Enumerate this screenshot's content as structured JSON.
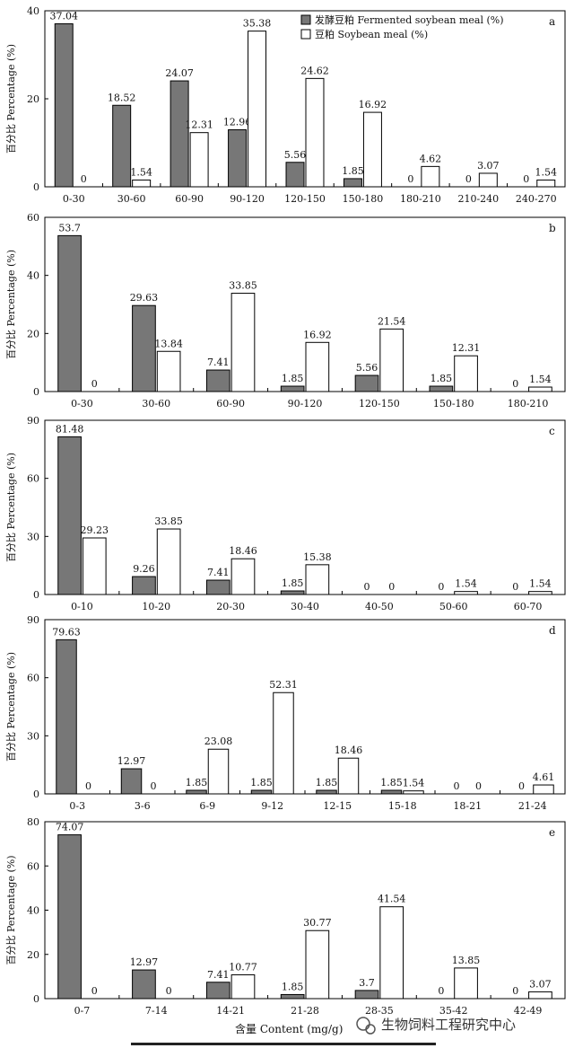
{
  "legend": [
    {
      "label": "发酵豆粕 Fermented soybean meal (%)",
      "color": "#777777"
    },
    {
      "label": "豆粕 Soybean meal (%)",
      "color": "#ffffff"
    }
  ],
  "xlabel": "含量 Content (mg/g)",
  "watermark": "生物饲料工程研究中心",
  "chart_data": [
    {
      "type": "bar",
      "panel": "a",
      "ylabel": "百分比 Percentage (%)",
      "ylim": [
        0,
        40
      ],
      "yticks": [
        0,
        20,
        40
      ],
      "categories": [
        "0-30",
        "30-60",
        "60-90",
        "90-120",
        "120-150",
        "150-180",
        "180-210",
        "210-240",
        "240-270"
      ],
      "series": [
        {
          "name": "发酵豆粕 Fermented soybean meal (%)",
          "values": [
            37.04,
            18.52,
            24.07,
            12.96,
            5.56,
            1.85,
            0,
            0,
            0
          ]
        },
        {
          "name": "豆粕 Soybean meal (%)",
          "values": [
            0,
            1.54,
            12.31,
            35.38,
            24.62,
            16.92,
            4.62,
            3.07,
            1.54
          ]
        }
      ],
      "labels": [
        [
          "37.04",
          "18.52",
          "24.07",
          "12.96",
          "5.56",
          "1.85",
          "0",
          "0",
          "0"
        ],
        [
          "0",
          "1.54",
          "12.31",
          "35.38",
          "24.62",
          "16.92",
          "4.62",
          "3.07",
          "1.54"
        ]
      ]
    },
    {
      "type": "bar",
      "panel": "b",
      "ylabel": "百分比 Percentage (%)",
      "ylim": [
        0,
        60
      ],
      "yticks": [
        0,
        20,
        40,
        60
      ],
      "categories": [
        "0-30",
        "30-60",
        "60-90",
        "90-120",
        "120-150",
        "150-180",
        "180-210"
      ],
      "series": [
        {
          "name": "发酵豆粕 Fermented soybean meal (%)",
          "values": [
            53.7,
            29.63,
            7.41,
            1.85,
            5.56,
            1.85,
            0
          ]
        },
        {
          "name": "豆粕 Soybean meal (%)",
          "values": [
            0,
            13.84,
            33.85,
            16.92,
            21.54,
            12.31,
            1.54
          ]
        }
      ],
      "labels": [
        [
          "53.7",
          "29.63",
          "7.41",
          "1.85",
          "5.56",
          "1.85",
          "0"
        ],
        [
          "0",
          "13.84",
          "33.85",
          "16.92",
          "21.54",
          "12.31",
          "1.54"
        ]
      ]
    },
    {
      "type": "bar",
      "panel": "c",
      "ylabel": "百分比 Percentage (%)",
      "ylim": [
        0,
        90
      ],
      "yticks": [
        0,
        30,
        60,
        90
      ],
      "categories": [
        "0-10",
        "10-20",
        "20-30",
        "30-40",
        "40-50",
        "50-60",
        "60-70"
      ],
      "series": [
        {
          "name": "发酵豆粕 Fermented soybean meal (%)",
          "values": [
            81.48,
            9.26,
            7.41,
            1.85,
            0,
            0,
            0
          ]
        },
        {
          "name": "豆粕 Soybean meal (%)",
          "values": [
            29.23,
            33.85,
            18.46,
            15.38,
            0,
            1.54,
            1.54
          ]
        }
      ],
      "labels": [
        [
          "81.48",
          "9.26",
          "7.41",
          "1.85",
          "0",
          "0",
          "0"
        ],
        [
          "29.23",
          "33.85",
          "18.46",
          "15.38",
          "0",
          "1.54",
          "1.54"
        ]
      ]
    },
    {
      "type": "bar",
      "panel": "d",
      "ylabel": "百分比 Percentage (%)",
      "ylim": [
        0,
        90
      ],
      "yticks": [
        0,
        30,
        60,
        90
      ],
      "categories": [
        "0-3",
        "3-6",
        "6-9",
        "9-12",
        "12-15",
        "15-18",
        "18-21",
        "21-24"
      ],
      "series": [
        {
          "name": "发酵豆粕 Fermented soybean meal (%)",
          "values": [
            79.63,
            12.97,
            1.85,
            1.85,
            1.85,
            1.85,
            0,
            0
          ]
        },
        {
          "name": "豆粕 Soybean meal (%)",
          "values": [
            0,
            0,
            23.08,
            52.31,
            18.46,
            1.54,
            0,
            4.61
          ]
        }
      ],
      "labels": [
        [
          "79.63",
          "12.97",
          "1.85",
          "1.85",
          "1.85",
          "1.85",
          "0",
          "0"
        ],
        [
          "0",
          "0",
          "23.08",
          "52.31",
          "18.46",
          "1.54",
          "0",
          "4.61"
        ]
      ]
    },
    {
      "type": "bar",
      "panel": "e",
      "ylabel": "百分比 Percentage (%)",
      "ylim": [
        0,
        80
      ],
      "yticks": [
        0,
        20,
        40,
        60,
        80
      ],
      "categories": [
        "0-7",
        "7-14",
        "14-21",
        "21-28",
        "28-35",
        "35-42",
        "42-49"
      ],
      "series": [
        {
          "name": "发酵豆粕 Fermented soybean meal (%)",
          "values": [
            74.07,
            12.97,
            7.41,
            1.85,
            3.7,
            0,
            0
          ]
        },
        {
          "name": "豆粕 Soybean meal (%)",
          "values": [
            0,
            0,
            10.77,
            30.77,
            41.54,
            13.85,
            3.07
          ]
        }
      ],
      "labels": [
        [
          "74.07",
          "12.97",
          "7.41",
          "1.85",
          "3.7",
          "0",
          "0"
        ],
        [
          "0",
          "0",
          "10.77",
          "30.77",
          "41.54",
          "13.85",
          "3.07"
        ]
      ]
    }
  ]
}
